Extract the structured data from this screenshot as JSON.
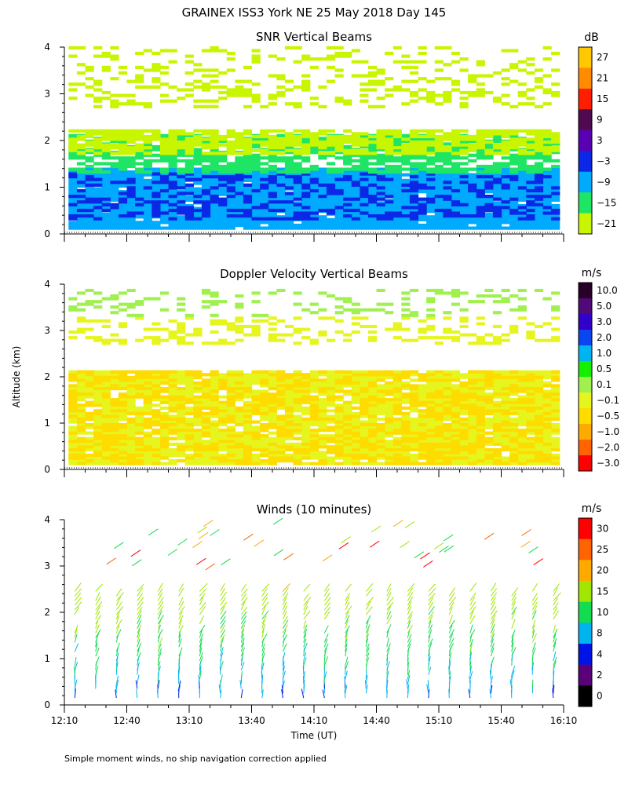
{
  "title": "GRAINEX ISS3 York NE  25 May 2018 Day 145",
  "ylabel": "Altitude (km)",
  "xlabel": "Time (UT)",
  "footnote": "Simple moment winds, no ship navigation correction applied",
  "chart_data": [
    {
      "type": "heatmap",
      "title": "SNR Vertical Beams",
      "unit": "dB",
      "xlim": [
        0,
        240
      ],
      "ylim": [
        0,
        4
      ],
      "yticks": [
        "0",
        "1",
        "2",
        "3",
        "4"
      ],
      "colorbar": {
        "labels": [
          "27",
          "21",
          "15",
          "9",
          "3",
          "−3",
          "−9",
          "−15",
          "−21"
        ],
        "colors": [
          "#ffc800",
          "#ff8c00",
          "#ff1e00",
          "#500a50",
          "#5a00b4",
          "#0a28e6",
          "#00aaff",
          "#1ee664",
          "#c8f500"
        ]
      },
      "layers": [
        {
          "band": [
            0.1,
            1.4
          ],
          "value": -9,
          "coverage": 0.95
        },
        {
          "band": [
            0.3,
            1.3
          ],
          "value": -3,
          "coverage": 0.35
        },
        {
          "band": [
            1.3,
            2.1
          ],
          "value": -15,
          "coverage": 0.7
        },
        {
          "band": [
            1.7,
            2.2
          ],
          "value": -21,
          "coverage": 0.7
        },
        {
          "band": [
            2.7,
            3.3
          ],
          "value": -21,
          "coverage": 0.25
        },
        {
          "band": [
            3.3,
            4.0
          ],
          "value": -21,
          "coverage": 0.2
        }
      ]
    },
    {
      "type": "heatmap",
      "title": "Doppler Velocity Vertical Beams",
      "unit": "m/s",
      "xlim": [
        0,
        240
      ],
      "ylim": [
        0,
        4
      ],
      "yticks": [
        "0",
        "1",
        "2",
        "3",
        "4"
      ],
      "colorbar": {
        "labels": [
          "10.0",
          "5.0",
          "3.0",
          "2.0",
          "1.0",
          "0.5",
          "0.1",
          "−0.1",
          "−0.5",
          "−1.0",
          "−2.0",
          "−3.0"
        ],
        "colors": [
          "#280028",
          "#500a78",
          "#3200c8",
          "#0a46f0",
          "#00b4f0",
          "#14f000",
          "#a0f050",
          "#e6f51e",
          "#ffdc00",
          "#ffaa00",
          "#ff6400",
          "#ff0000"
        ]
      },
      "layers": [
        {
          "band": [
            0.1,
            2.1
          ],
          "value": -0.1,
          "coverage": 0.85
        },
        {
          "band": [
            0.1,
            2.1
          ],
          "value": -0.5,
          "coverage": 0.45
        },
        {
          "band": [
            2.7,
            3.3
          ],
          "value": -0.1,
          "coverage": 0.3
        },
        {
          "band": [
            3.3,
            3.9
          ],
          "value": 0.1,
          "coverage": 0.2
        }
      ]
    },
    {
      "type": "wind_barbs",
      "title": "Winds (10 minutes)",
      "unit": "m/s",
      "xlim": [
        0,
        240
      ],
      "ylim": [
        0,
        4
      ],
      "yticks": [
        "0",
        "1",
        "2",
        "3",
        "4"
      ],
      "xticks": [
        "12:10",
        "12:40",
        "13:10",
        "13:40",
        "14:10",
        "14:40",
        "15:10",
        "15:40",
        "16:10"
      ],
      "colorbar": {
        "labels": [
          "30",
          "25",
          "20",
          "15",
          "10",
          "8",
          "4",
          "2",
          "0"
        ],
        "colors": [
          "#ff0000",
          "#ff6400",
          "#ffaa00",
          "#a0e600",
          "#14dc50",
          "#00b4f0",
          "#0014e6",
          "#5a0078",
          "#000000"
        ]
      },
      "profiles_minutes": [
        5,
        15,
        25,
        35,
        45,
        55,
        65,
        75,
        85,
        95,
        105,
        115,
        125,
        135,
        145,
        155,
        165,
        175,
        185,
        195,
        205,
        215,
        225,
        235
      ]
    }
  ]
}
